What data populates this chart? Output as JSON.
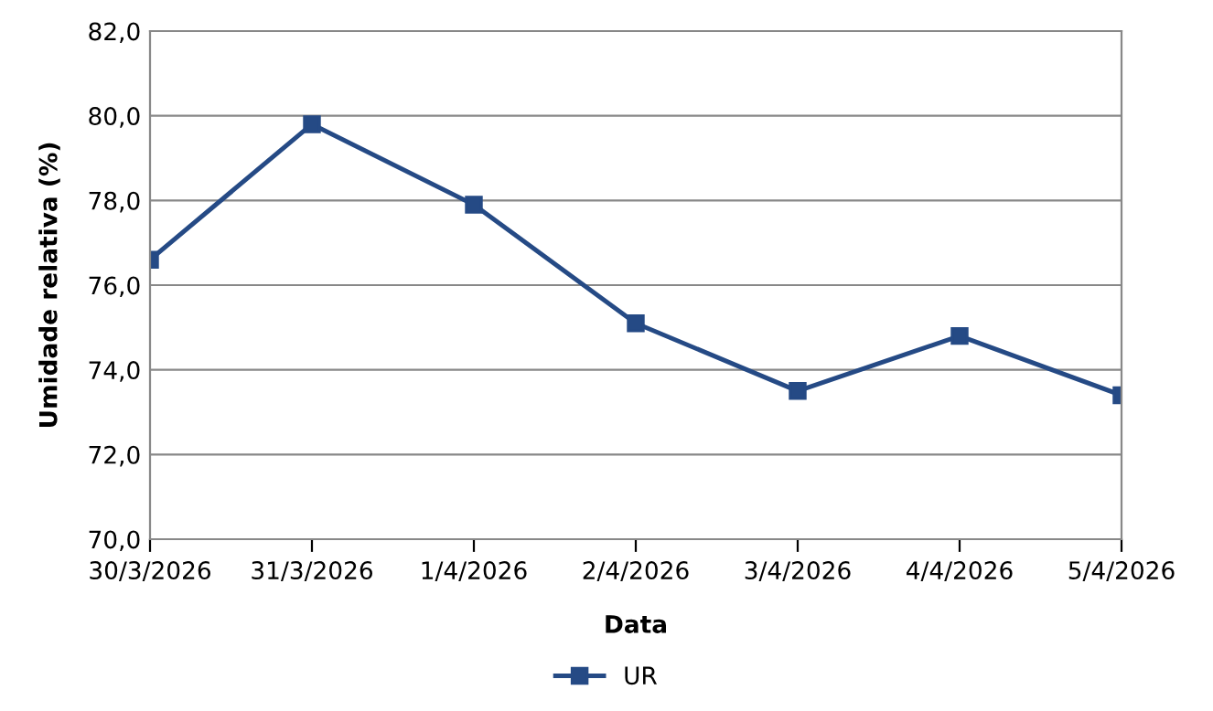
{
  "chart_data": {
    "type": "line",
    "xlabel": "Data",
    "ylabel": "Umidade relativa (%)",
    "categories": [
      "30/3/2026",
      "31/3/2026",
      "1/4/2026",
      "2/4/2026",
      "3/4/2026",
      "4/4/2026",
      "5/4/2026"
    ],
    "series": [
      {
        "name": "UR",
        "color": "#254a85",
        "values": [
          76.6,
          79.8,
          77.9,
          75.1,
          73.5,
          74.8,
          73.4
        ]
      }
    ],
    "ylim": [
      70,
      82
    ],
    "yticks": [
      {
        "value": 70,
        "label": "70,0"
      },
      {
        "value": 72,
        "label": "72,0"
      },
      {
        "value": 74,
        "label": "74,0"
      },
      {
        "value": 76,
        "label": "76,0"
      },
      {
        "value": 78,
        "label": "78,0"
      },
      {
        "value": 80,
        "label": "80,0"
      },
      {
        "value": 82,
        "label": "82,0"
      }
    ],
    "grid": "y",
    "legend": "bottom",
    "marker": "square",
    "line_style": "solid"
  }
}
